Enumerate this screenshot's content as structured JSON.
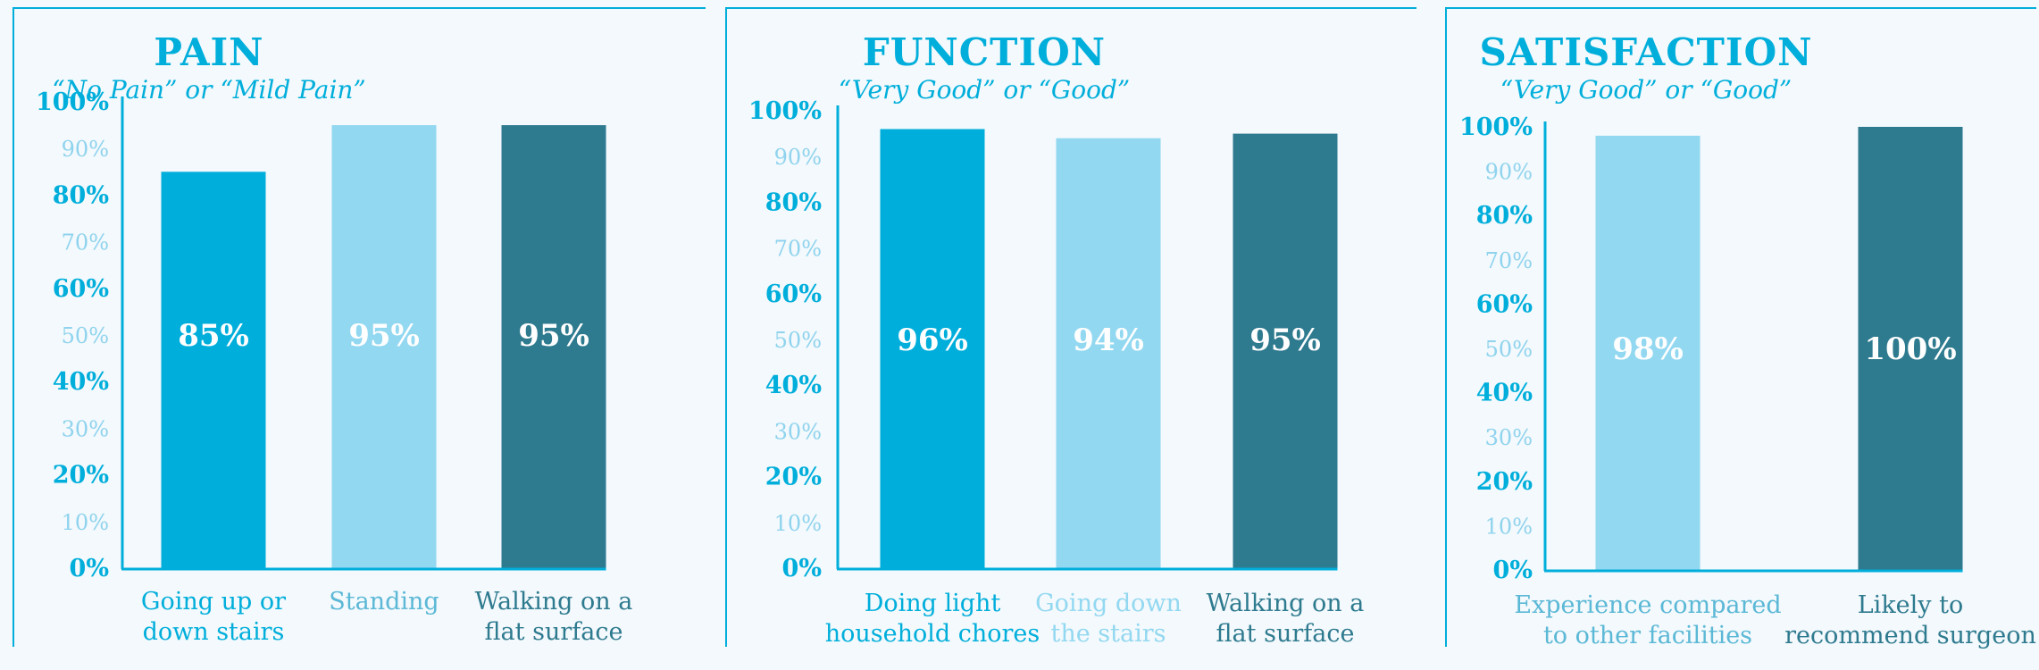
{
  "colors": {
    "accent": "#00aedb",
    "bright_blue": "#00aedb",
    "light_blue": "#93d8f1",
    "teal": "#2e7a8f",
    "minor_tick": "#8fd3ee",
    "background": "#f3f9fc"
  },
  "chart_data": [
    {
      "type": "bar",
      "title": "PAIN",
      "subtitle": "“No Pain” or “Mild Pain”",
      "categories": [
        [
          "Going up or",
          "down stairs"
        ],
        [
          "Standing"
        ],
        [
          "Walking on a",
          "flat surface"
        ]
      ],
      "values": [
        85,
        95,
        95
      ],
      "data_labels": [
        "85%",
        "95%",
        "95%"
      ],
      "bar_colors": [
        "#00aedb",
        "#93d8f1",
        "#2e7a8f"
      ],
      "label_colors": [
        "#00aedb",
        "#5bb8d6",
        "#2e7a8f"
      ],
      "ylim": [
        0,
        100
      ],
      "yticks": [
        "0%",
        "10%",
        "20%",
        "30%",
        "40%",
        "50%",
        "60%",
        "70%",
        "80%",
        "90%",
        "100%"
      ],
      "grid": false
    },
    {
      "type": "bar",
      "title": "FUNCTION",
      "subtitle": "“Very Good” or “Good”",
      "categories": [
        [
          "Doing light",
          "household chores"
        ],
        [
          "Going down",
          "the stairs"
        ],
        [
          "Walking on a",
          "flat surface"
        ]
      ],
      "values": [
        96,
        94,
        95
      ],
      "data_labels": [
        "96%",
        "94%",
        "95%"
      ],
      "bar_colors": [
        "#00aedb",
        "#93d8f1",
        "#2e7a8f"
      ],
      "label_colors": [
        "#00aedb",
        "#93d8f1",
        "#2e7a8f"
      ],
      "ylim": [
        0,
        100
      ],
      "yticks": [
        "0%",
        "10%",
        "20%",
        "30%",
        "40%",
        "50%",
        "60%",
        "70%",
        "80%",
        "90%",
        "100%"
      ],
      "grid": false
    },
    {
      "type": "bar",
      "title": "SATISFACTION",
      "subtitle": "“Very Good” or “Good”",
      "categories": [
        [
          "Experience compared",
          "to other facilities"
        ],
        [
          "Likely to",
          "recommend surgeon"
        ]
      ],
      "values": [
        98,
        100
      ],
      "data_labels": [
        "98%",
        "100%"
      ],
      "bar_colors": [
        "#93d8f1",
        "#2e7a8f"
      ],
      "label_colors": [
        "#5bb8d6",
        "#2e7a8f"
      ],
      "ylim": [
        0,
        100
      ],
      "yticks": [
        "0%",
        "10%",
        "20%",
        "30%",
        "40%",
        "50%",
        "60%",
        "70%",
        "80%",
        "90%",
        "100%"
      ],
      "grid": false
    }
  ]
}
